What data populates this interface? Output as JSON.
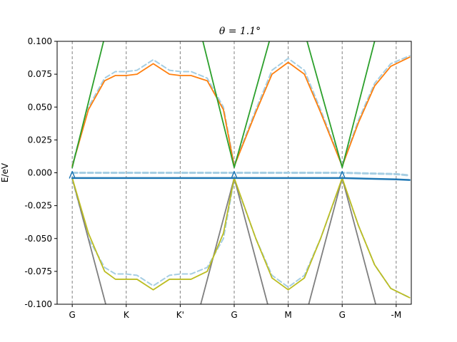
{
  "chart_data": {
    "type": "line",
    "title": "θ = 1.1°",
    "xlabel": "",
    "ylabel": "E/eV",
    "xlim": [
      0,
      7
    ],
    "ylim": [
      -0.1,
      0.1
    ],
    "grid": false,
    "x_ticks": [
      {
        "pos": 0,
        "label": "G"
      },
      {
        "pos": 1,
        "label": "K"
      },
      {
        "pos": 2,
        "label": "K'"
      },
      {
        "pos": 3,
        "label": "G"
      },
      {
        "pos": 4,
        "label": "M"
      },
      {
        "pos": 5,
        "label": "G"
      },
      {
        "pos": 6,
        "label": "-M"
      }
    ],
    "y_ticks": [
      "0.100",
      "0.075",
      "0.050",
      "0.025",
      "0.000",
      "-0.025",
      "-0.050",
      "-0.075",
      "-0.100"
    ],
    "y_tick_values": [
      0.1,
      0.075,
      0.05,
      0.025,
      0.0,
      -0.025,
      -0.05,
      -0.075,
      -0.1
    ],
    "vlines": [
      0,
      1,
      2,
      3,
      4,
      5,
      6
    ],
    "vline_color": "#808080",
    "series": [
      {
        "color": "#a6cee3",
        "dash": true,
        "width": 2,
        "x": [
          0,
          0.3,
          0.6,
          0.8,
          1.0,
          1.2,
          1.5,
          1.8,
          2.0,
          2.2,
          2.5,
          2.8,
          3.0
        ],
        "y": [
          0.006,
          0.05,
          0.072,
          0.077,
          0.077,
          0.078,
          0.086,
          0.078,
          0.077,
          0.077,
          0.072,
          0.05,
          0.006
        ]
      },
      {
        "color": "#a6cee3",
        "dash": true,
        "width": 2,
        "x": [
          3.0,
          3.4,
          3.7,
          4.0,
          4.3,
          4.6,
          5.0
        ],
        "y": [
          0.006,
          0.048,
          0.078,
          0.087,
          0.078,
          0.048,
          0.006
        ]
      },
      {
        "color": "#a6cee3",
        "dash": true,
        "width": 2,
        "x": [
          5.0,
          5.3,
          5.6,
          5.9,
          6.25
        ],
        "y": [
          0.006,
          0.04,
          0.068,
          0.083,
          0.089
        ]
      },
      {
        "color": "#a6cee3",
        "dash": true,
        "width": 3,
        "x": [
          0,
          1,
          2,
          3,
          4,
          5,
          6,
          6.25
        ],
        "y": [
          0.0,
          0.0,
          0.0,
          0.0,
          0.0,
          0.0,
          -0.001,
          -0.002
        ]
      },
      {
        "color": "#a6cee3",
        "dash": true,
        "width": 2,
        "x": [
          0,
          0.3,
          0.6,
          0.8,
          1.0,
          1.2,
          1.5,
          1.8,
          2.0,
          2.2,
          2.5,
          2.8,
          3.0
        ],
        "y": [
          -0.005,
          -0.05,
          -0.072,
          -0.077,
          -0.077,
          -0.078,
          -0.086,
          -0.078,
          -0.077,
          -0.077,
          -0.072,
          -0.05,
          -0.005
        ]
      },
      {
        "color": "#a6cee3",
        "dash": true,
        "width": 2,
        "x": [
          3.0,
          3.4,
          3.7,
          4.0,
          4.3,
          4.6,
          5.0
        ],
        "y": [
          -0.005,
          -0.05,
          -0.078,
          -0.087,
          -0.078,
          -0.05,
          -0.005
        ]
      },
      {
        "color": "#a6cee3",
        "dash": true,
        "width": 2,
        "x": [
          5.0,
          5.3,
          5.6,
          5.9,
          6.25
        ],
        "y": [
          -0.005,
          -0.04,
          -0.07,
          -0.088,
          -0.095
        ]
      },
      {
        "color": "#ff7f0e",
        "dash": false,
        "width": 1.8,
        "x": [
          0,
          0.3,
          0.6,
          0.8,
          1.0,
          1.2,
          1.5,
          1.8,
          2.0,
          2.2,
          2.5,
          2.8,
          3.0
        ],
        "y": [
          0.005,
          0.048,
          0.07,
          0.074,
          0.074,
          0.075,
          0.083,
          0.075,
          0.074,
          0.074,
          0.07,
          0.048,
          0.005
        ]
      },
      {
        "color": "#ff7f0e",
        "dash": false,
        "width": 1.8,
        "x": [
          3.0,
          3.4,
          3.7,
          4.0,
          4.3,
          4.6,
          5.0
        ],
        "y": [
          0.005,
          0.046,
          0.075,
          0.084,
          0.075,
          0.046,
          0.005
        ]
      },
      {
        "color": "#ff7f0e",
        "dash": false,
        "width": 1.8,
        "x": [
          5.0,
          5.3,
          5.6,
          5.9,
          6.25
        ],
        "y": [
          0.005,
          0.038,
          0.066,
          0.081,
          0.088
        ]
      },
      {
        "color": "#2ca02c",
        "dash": false,
        "width": 1.8,
        "x": [
          0,
          0.58
        ],
        "y": [
          0.004,
          0.1
        ]
      },
      {
        "color": "#2ca02c",
        "dash": false,
        "width": 1.8,
        "x": [
          2.42,
          3.0,
          3.65
        ],
        "y": [
          0.1,
          0.004,
          0.1
        ]
      },
      {
        "color": "#2ca02c",
        "dash": false,
        "width": 1.8,
        "x": [
          4.35,
          5.0,
          5.6
        ],
        "y": [
          0.1,
          0.004,
          0.1
        ]
      },
      {
        "color": "#7f7f7f",
        "dash": false,
        "width": 1.8,
        "x": [
          0,
          0.62
        ],
        "y": [
          -0.004,
          -0.1
        ]
      },
      {
        "color": "#7f7f7f",
        "dash": false,
        "width": 1.8,
        "x": [
          2.38,
          3.0,
          3.62
        ],
        "y": [
          -0.1,
          -0.004,
          -0.1
        ]
      },
      {
        "color": "#7f7f7f",
        "dash": false,
        "width": 1.8,
        "x": [
          4.38,
          5.0,
          5.62
        ],
        "y": [
          -0.1,
          -0.004,
          -0.1
        ]
      },
      {
        "color": "#bcbd22",
        "dash": false,
        "width": 1.8,
        "x": [
          0,
          0.3,
          0.6,
          0.8,
          1.0,
          1.2,
          1.5,
          1.8,
          2.0,
          2.2,
          2.5,
          2.8,
          3.0
        ],
        "y": [
          -0.004,
          -0.046,
          -0.075,
          -0.081,
          -0.081,
          -0.081,
          -0.089,
          -0.081,
          -0.081,
          -0.081,
          -0.075,
          -0.046,
          -0.004
        ]
      },
      {
        "color": "#bcbd22",
        "dash": false,
        "width": 1.8,
        "x": [
          3.0,
          3.4,
          3.7,
          4.0,
          4.3,
          4.6,
          5.0
        ],
        "y": [
          -0.004,
          -0.05,
          -0.08,
          -0.089,
          -0.08,
          -0.05,
          -0.004
        ]
      },
      {
        "color": "#bcbd22",
        "dash": false,
        "width": 1.8,
        "x": [
          5.0,
          5.3,
          5.6,
          5.9,
          6.25
        ],
        "y": [
          -0.004,
          -0.04,
          -0.07,
          -0.088,
          -0.095
        ]
      },
      {
        "color": "#1f77b4",
        "dash": false,
        "width": 2.5,
        "x": [
          0,
          1,
          2,
          3,
          4,
          5,
          6,
          6.25
        ],
        "y": [
          -0.004,
          -0.004,
          -0.004,
          -0.004,
          -0.004,
          -0.004,
          -0.005,
          -0.0055
        ]
      },
      {
        "color": "#1f77b4",
        "dash": false,
        "width": 1.5,
        "x": [
          -0.05,
          0,
          0.05
        ],
        "y": [
          -0.004,
          0.001,
          -0.004
        ]
      },
      {
        "color": "#1f77b4",
        "dash": false,
        "width": 1.5,
        "x": [
          2.95,
          3.0,
          3.05
        ],
        "y": [
          -0.004,
          0.001,
          -0.004
        ]
      },
      {
        "color": "#1f77b4",
        "dash": false,
        "width": 1.5,
        "x": [
          4.95,
          5.0,
          5.05
        ],
        "y": [
          -0.004,
          0.001,
          -0.004
        ]
      }
    ]
  }
}
